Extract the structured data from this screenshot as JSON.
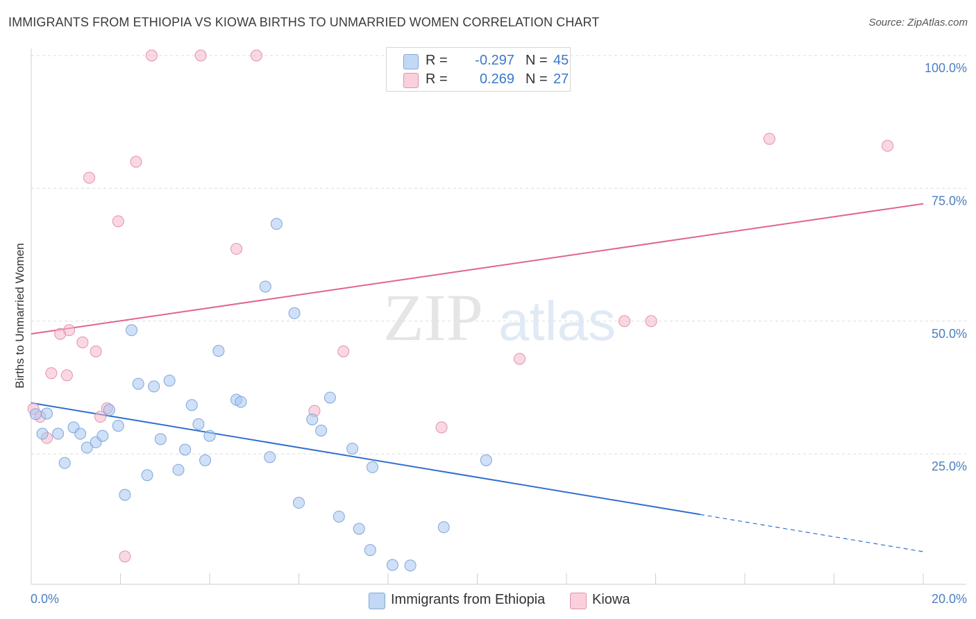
{
  "chart_data": {
    "type": "scatter",
    "title": "IMMIGRANTS FROM ETHIOPIA VS KIOWA BIRTHS TO UNMARRIED WOMEN CORRELATION CHART",
    "source": "Source: ZipAtlas.com",
    "xlabel": "",
    "ylabel": "Births to Unmarried Women",
    "xlim": [
      0,
      20
    ],
    "ylim": [
      0,
      105
    ],
    "x_tick_labels": [
      "0.0%",
      "20.0%"
    ],
    "y_tick_labels": [
      "25.0%",
      "50.0%",
      "75.0%",
      "100.0%"
    ],
    "y_tick_values": [
      25,
      50,
      75,
      100
    ],
    "watermark": {
      "zip": "ZIP",
      "atlas": "atlas"
    },
    "legend": {
      "rows": [
        {
          "r_label": "R =",
          "r_value": "-0.297",
          "n_label": "N =",
          "n_value": "45"
        },
        {
          "r_label": "R =",
          "r_value": "0.269",
          "n_label": "N =",
          "n_value": "27"
        }
      ]
    },
    "series": [
      {
        "name": "Immigrants from Ethiopia",
        "color": "#a8c6f0",
        "stroke": "#7ea6d9",
        "trend_color": "#2f6fcf",
        "trend": {
          "x0": 0,
          "y0": 34.6,
          "x1": 15.0,
          "y1": 13.6,
          "dash_x1": 20,
          "dash_y1": 6.6
        },
        "points": [
          [
            0.1,
            32.5
          ],
          [
            0.25,
            28.8
          ],
          [
            0.35,
            32.6
          ],
          [
            0.6,
            28.8
          ],
          [
            0.75,
            23.3
          ],
          [
            0.95,
            30.0
          ],
          [
            1.1,
            28.8
          ],
          [
            1.25,
            26.2
          ],
          [
            1.45,
            27.2
          ],
          [
            1.6,
            28.4
          ],
          [
            1.75,
            33.3
          ],
          [
            1.95,
            30.3
          ],
          [
            2.1,
            17.3
          ],
          [
            2.25,
            48.3
          ],
          [
            2.4,
            38.2
          ],
          [
            2.6,
            21.0
          ],
          [
            2.75,
            37.7
          ],
          [
            2.9,
            27.8
          ],
          [
            3.1,
            38.8
          ],
          [
            3.3,
            22.0
          ],
          [
            3.45,
            25.8
          ],
          [
            3.6,
            34.2
          ],
          [
            3.75,
            30.6
          ],
          [
            3.9,
            23.8
          ],
          [
            4.0,
            28.4
          ],
          [
            4.2,
            44.4
          ],
          [
            4.6,
            35.2
          ],
          [
            4.7,
            34.8
          ],
          [
            5.25,
            56.5
          ],
          [
            5.35,
            24.4
          ],
          [
            5.5,
            68.3
          ],
          [
            5.9,
            51.5
          ],
          [
            6.0,
            15.8
          ],
          [
            6.3,
            31.5
          ],
          [
            6.5,
            29.4
          ],
          [
            6.7,
            35.6
          ],
          [
            6.9,
            13.2
          ],
          [
            7.2,
            26.0
          ],
          [
            7.35,
            10.9
          ],
          [
            7.6,
            6.9
          ],
          [
            7.65,
            22.5
          ],
          [
            8.1,
            4.1
          ],
          [
            8.5,
            4.0
          ],
          [
            9.25,
            11.2
          ],
          [
            10.2,
            23.8
          ]
        ]
      },
      {
        "name": "Kiowa",
        "color": "#f6b8cb",
        "stroke": "#e390aa",
        "trend_color": "#e0648e",
        "trend": {
          "x0": 0,
          "y0": 47.6,
          "x1": 20,
          "y1": 72.1
        },
        "points": [
          [
            0.05,
            33.5
          ],
          [
            0.2,
            32.0
          ],
          [
            0.35,
            28.0
          ],
          [
            0.45,
            40.2
          ],
          [
            0.65,
            47.6
          ],
          [
            0.8,
            39.8
          ],
          [
            0.85,
            48.3
          ],
          [
            1.15,
            46.0
          ],
          [
            1.3,
            77.0
          ],
          [
            1.45,
            44.3
          ],
          [
            1.55,
            32.0
          ],
          [
            1.7,
            33.6
          ],
          [
            1.95,
            68.8
          ],
          [
            2.1,
            5.7
          ],
          [
            2.35,
            80.0
          ],
          [
            2.7,
            100.0
          ],
          [
            3.8,
            100.0
          ],
          [
            4.6,
            63.6
          ],
          [
            5.05,
            100.0
          ],
          [
            6.35,
            33.1
          ],
          [
            7.0,
            44.3
          ],
          [
            9.2,
            30.0
          ],
          [
            10.95,
            42.9
          ],
          [
            13.3,
            50.0
          ],
          [
            13.9,
            50.0
          ],
          [
            16.55,
            84.3
          ],
          [
            19.2,
            83.0
          ]
        ]
      }
    ]
  }
}
